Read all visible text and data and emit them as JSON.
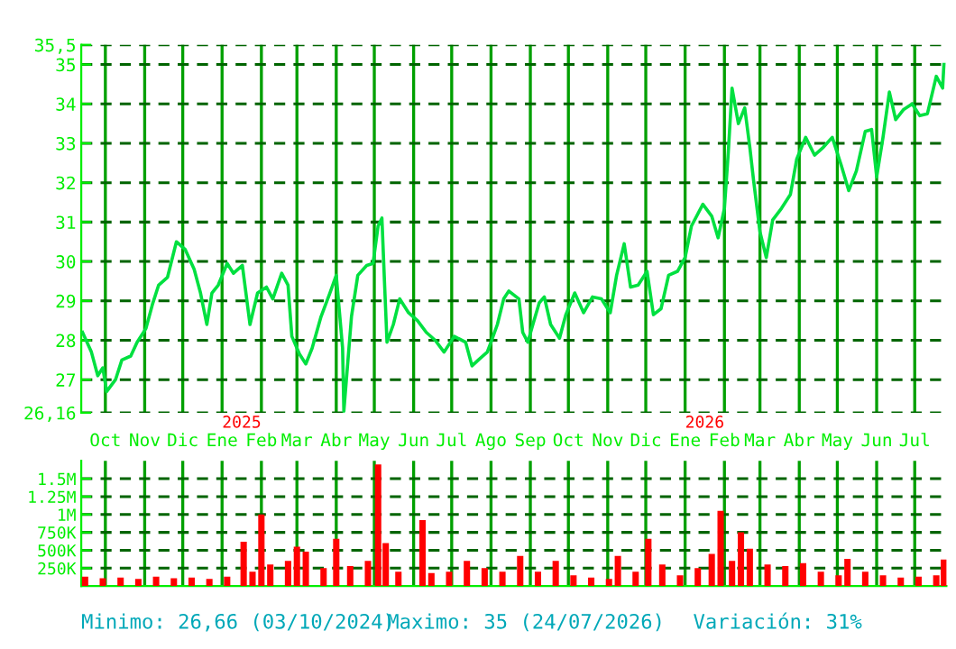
{
  "chart_data": [
    {
      "type": "line",
      "x": [
        "2024-09-13",
        "2024-09-20",
        "2024-09-25",
        "2024-09-29",
        "2024-10-02",
        "2024-10-09",
        "2024-10-14",
        "2024-10-21",
        "2024-10-26",
        "2024-11-02",
        "2024-11-07",
        "2024-11-12",
        "2024-11-19",
        "2024-11-26",
        "2024-12-03",
        "2024-12-10",
        "2024-12-15",
        "2024-12-20",
        "2024-12-24",
        "2024-12-29",
        "2025-01-05",
        "2025-01-10",
        "2025-01-17",
        "2025-01-23",
        "2025-01-29",
        "2025-02-05",
        "2025-02-10",
        "2025-02-17",
        "2025-02-22",
        "2025-02-25",
        "2025-03-03",
        "2025-03-08",
        "2025-03-13",
        "2025-03-20",
        "2025-03-27",
        "2025-04-01",
        "2025-04-06",
        "2025-04-07",
        "2025-04-13",
        "2025-04-18",
        "2025-04-25",
        "2025-04-30",
        "2025-05-04",
        "2025-05-07",
        "2025-05-09",
        "2025-05-11",
        "2025-05-16",
        "2025-05-21",
        "2025-05-28",
        "2025-06-04",
        "2025-06-11",
        "2025-06-18",
        "2025-06-25",
        "2025-07-03",
        "2025-07-12",
        "2025-07-17",
        "2025-07-22",
        "2025-07-29",
        "2025-08-01",
        "2025-08-06",
        "2025-08-11",
        "2025-08-15",
        "2025-08-23",
        "2025-08-26",
        "2025-08-30",
        "2025-09-03",
        "2025-09-08",
        "2025-09-12",
        "2025-09-17",
        "2025-09-24",
        "2025-09-29",
        "2025-10-06",
        "2025-10-13",
        "2025-10-20",
        "2025-10-27",
        "2025-11-03",
        "2025-11-08",
        "2025-11-14",
        "2025-11-19",
        "2025-11-25",
        "2025-12-02",
        "2025-12-07",
        "2025-12-13",
        "2025-12-19",
        "2025-12-26",
        "2026-01-01",
        "2026-01-06",
        "2026-01-15",
        "2026-01-22",
        "2026-01-27",
        "2026-02-01",
        "2026-02-04",
        "2026-02-07",
        "2026-02-12",
        "2026-02-17",
        "2026-02-21",
        "2026-02-24",
        "2026-03-01",
        "2026-03-06",
        "2026-03-11",
        "2026-03-18",
        "2026-03-25",
        "2026-03-30",
        "2026-04-06",
        "2026-04-13",
        "2026-04-20",
        "2026-04-27",
        "2026-05-04",
        "2026-05-10",
        "2026-05-16",
        "2026-05-23",
        "2026-05-28",
        "2026-06-01",
        "2026-06-06",
        "2026-06-11",
        "2026-06-16",
        "2026-06-22",
        "2026-06-29",
        "2026-07-05",
        "2026-07-11",
        "2026-07-18",
        "2026-07-23",
        "2026-07-24"
      ],
      "series": [
        {
          "color": "#00e040",
          "values": [
            28.2,
            27.7,
            27.1,
            27.3,
            26.7,
            27.0,
            27.5,
            27.6,
            27.95,
            28.3,
            28.9,
            29.4,
            29.6,
            30.5,
            30.3,
            29.8,
            29.2,
            28.4,
            29.2,
            29.4,
            29.95,
            29.7,
            29.9,
            28.4,
            29.2,
            29.35,
            29.05,
            29.7,
            29.4,
            28.1,
            27.65,
            27.4,
            27.8,
            28.6,
            29.2,
            29.65,
            27.8,
            26.2,
            28.6,
            29.65,
            29.9,
            29.95,
            30.9,
            31.1,
            29.5,
            27.95,
            28.4,
            29.05,
            28.7,
            28.5,
            28.2,
            28.0,
            27.7,
            28.1,
            27.95,
            27.35,
            27.5,
            27.7,
            27.95,
            28.4,
            29.05,
            29.25,
            29.05,
            28.2,
            27.95,
            28.4,
            28.95,
            29.1,
            28.4,
            28.05,
            28.65,
            29.2,
            28.7,
            29.1,
            29.05,
            28.7,
            29.65,
            30.45,
            29.35,
            29.4,
            29.75,
            28.65,
            28.8,
            29.65,
            29.75,
            30.1,
            30.9,
            31.45,
            31.15,
            30.6,
            31.35,
            32.75,
            34.4,
            33.5,
            33.9,
            32.9,
            32.05,
            30.75,
            30.1,
            31.05,
            31.35,
            31.7,
            32.6,
            33.15,
            32.7,
            32.9,
            33.15,
            32.45,
            31.8,
            32.3,
            33.3,
            33.35,
            32.15,
            33.15,
            34.3,
            33.6,
            33.85,
            34.0,
            33.7,
            33.75,
            34.7,
            34.4,
            35.0
          ]
        }
      ],
      "xlim": [
        "2024-09-12",
        "2026-07-26"
      ],
      "xticks": [
        {
          "value": "2024-10-01",
          "label": "Oct"
        },
        {
          "value": "2024-11-01",
          "label": "Nov"
        },
        {
          "value": "2024-12-01",
          "label": "Dic"
        },
        {
          "value": "2025-01-01",
          "label": "Ene"
        },
        {
          "value": "2025-02-01",
          "label": "Feb"
        },
        {
          "value": "2025-03-01",
          "label": "Mar"
        },
        {
          "value": "2025-04-01",
          "label": "Abr"
        },
        {
          "value": "2025-05-01",
          "label": "May"
        },
        {
          "value": "2025-06-01",
          "label": "Jun"
        },
        {
          "value": "2025-07-01",
          "label": "Jul"
        },
        {
          "value": "2025-08-01",
          "label": "Ago"
        },
        {
          "value": "2025-09-01",
          "label": "Sep"
        },
        {
          "value": "2025-10-01",
          "label": "Oct"
        },
        {
          "value": "2025-11-01",
          "label": "Nov"
        },
        {
          "value": "2025-12-01",
          "label": "Dic"
        },
        {
          "value": "2026-01-01",
          "label": "Ene"
        },
        {
          "value": "2026-02-01",
          "label": "Feb"
        },
        {
          "value": "2026-03-01",
          "label": "Mar"
        },
        {
          "value": "2026-04-01",
          "label": "Abr"
        },
        {
          "value": "2026-05-01",
          "label": "May"
        },
        {
          "value": "2026-06-01",
          "label": "Jun"
        },
        {
          "value": "2026-07-01",
          "label": "Jul"
        }
      ],
      "ylim": [
        26.16,
        35.5
      ],
      "yticks": [
        {
          "value": 26.16,
          "label": "26,16"
        },
        27,
        28,
        29,
        30,
        31,
        32,
        33,
        34,
        35,
        {
          "value": 35.5,
          "label": "35,5"
        }
      ],
      "grid": true,
      "annotations": [
        "2025",
        "2026"
      ]
    },
    {
      "type": "bar",
      "color": "#ff0000",
      "x": [
        "2024-09-15",
        "2024-09-29",
        "2024-10-13",
        "2024-10-27",
        "2024-11-10",
        "2024-11-24",
        "2024-12-08",
        "2024-12-22",
        "2025-01-05",
        "2025-01-18",
        "2025-01-25",
        "2025-02-01",
        "2025-02-08",
        "2025-02-22",
        "2025-03-01",
        "2025-03-08",
        "2025-03-22",
        "2025-04-01",
        "2025-04-12",
        "2025-04-26",
        "2025-05-04",
        "2025-05-10",
        "2025-05-20",
        "2025-06-08",
        "2025-06-15",
        "2025-06-29",
        "2025-07-13",
        "2025-07-27",
        "2025-08-10",
        "2025-08-24",
        "2025-09-07",
        "2025-09-21",
        "2025-10-05",
        "2025-10-19",
        "2025-11-02",
        "2025-11-09",
        "2025-11-23",
        "2025-12-03",
        "2025-12-14",
        "2025-12-28",
        "2026-01-11",
        "2026-01-22",
        "2026-01-29",
        "2026-02-07",
        "2026-02-14",
        "2026-02-21",
        "2026-03-07",
        "2026-03-21",
        "2026-04-04",
        "2026-04-18",
        "2026-05-02",
        "2026-05-09",
        "2026-05-23",
        "2026-06-06",
        "2026-06-20",
        "2026-07-04",
        "2026-07-18",
        "2026-07-24"
      ],
      "values": [
        130000,
        110000,
        120000,
        100000,
        130000,
        110000,
        120000,
        100000,
        130000,
        620000,
        200000,
        1000000,
        300000,
        350000,
        550000,
        480000,
        250000,
        660000,
        280000,
        350000,
        1700000,
        600000,
        200000,
        920000,
        180000,
        200000,
        350000,
        250000,
        200000,
        420000,
        200000,
        350000,
        150000,
        120000,
        100000,
        420000,
        200000,
        660000,
        300000,
        150000,
        250000,
        450000,
        1050000,
        350000,
        750000,
        520000,
        300000,
        280000,
        320000,
        200000,
        150000,
        380000,
        200000,
        150000,
        120000,
        130000,
        150000,
        370000
      ],
      "xlim": [
        "2024-09-12",
        "2026-07-26"
      ],
      "xticks": [
        {
          "value": "2024-10-01",
          "label": null
        },
        {
          "value": "2024-11-01",
          "label": null
        },
        {
          "value": "2024-12-01",
          "label": null
        },
        {
          "value": "2025-01-01",
          "label": null
        },
        {
          "value": "2025-02-01",
          "label": null
        },
        {
          "value": "2025-03-01",
          "label": null
        },
        {
          "value": "2025-04-01",
          "label": null
        },
        {
          "value": "2025-05-01",
          "label": null
        },
        {
          "value": "2025-06-01",
          "label": null
        },
        {
          "value": "2025-07-01",
          "label": null
        },
        {
          "value": "2025-08-01",
          "label": null
        },
        {
          "value": "2025-09-01",
          "label": null
        },
        {
          "value": "2025-10-01",
          "label": null
        },
        {
          "value": "2025-11-01",
          "label": null
        },
        {
          "value": "2025-12-01",
          "label": null
        },
        {
          "value": "2026-01-01",
          "label": null
        },
        {
          "value": "2026-02-01",
          "label": null
        },
        {
          "value": "2026-03-01",
          "label": null
        },
        {
          "value": "2026-04-01",
          "label": null
        },
        {
          "value": "2026-05-01",
          "label": null
        },
        {
          "value": "2026-06-01",
          "label": null
        },
        {
          "value": "2026-07-01",
          "label": null
        }
      ],
      "ylim": [
        0,
        1750000
      ],
      "yticks": [
        {
          "value": 250000,
          "label": "250K"
        },
        {
          "value": 500000,
          "label": "500K"
        },
        {
          "value": 750000,
          "label": "750K"
        },
        {
          "value": 1000000,
          "label": "1M"
        },
        {
          "value": 1250000,
          "label": "1.25M"
        },
        {
          "value": 1500000,
          "label": "1.5M"
        }
      ],
      "grid": true,
      "tick_labels": "y",
      "annotations": [
        "Minimo: 26,66 (03/10/2024)",
        "Maximo: 35 (24/07/2026)",
        "Variación: 31%"
      ]
    }
  ]
}
